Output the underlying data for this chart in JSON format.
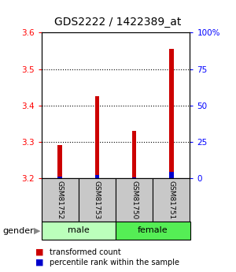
{
  "title": "GDS2222 / 1422389_at",
  "samples": [
    "GSM81752",
    "GSM81753",
    "GSM81750",
    "GSM81751"
  ],
  "groups": [
    "male",
    "male",
    "female",
    "female"
  ],
  "red_values": [
    3.29,
    3.425,
    3.33,
    3.555
  ],
  "blue_values": [
    3.205,
    3.208,
    3.202,
    3.218
  ],
  "ylim_left": [
    3.2,
    3.6
  ],
  "ylim_right": [
    0,
    100
  ],
  "yticks_left": [
    3.2,
    3.3,
    3.4,
    3.5,
    3.6
  ],
  "yticks_right": [
    0,
    25,
    50,
    75,
    100
  ],
  "bar_bottom": 3.2,
  "bar_width": 0.12,
  "sample_box_color": "#c8c8c8",
  "male_color": "#bbffbb",
  "female_color": "#55ee55",
  "red_color": "#cc0000",
  "blue_color": "#0000cc",
  "title_fontsize": 10,
  "tick_fontsize": 7.5,
  "legend_fontsize": 7,
  "figure_bg": "#ffffff",
  "gridline_ticks": [
    3.3,
    3.4,
    3.5
  ]
}
